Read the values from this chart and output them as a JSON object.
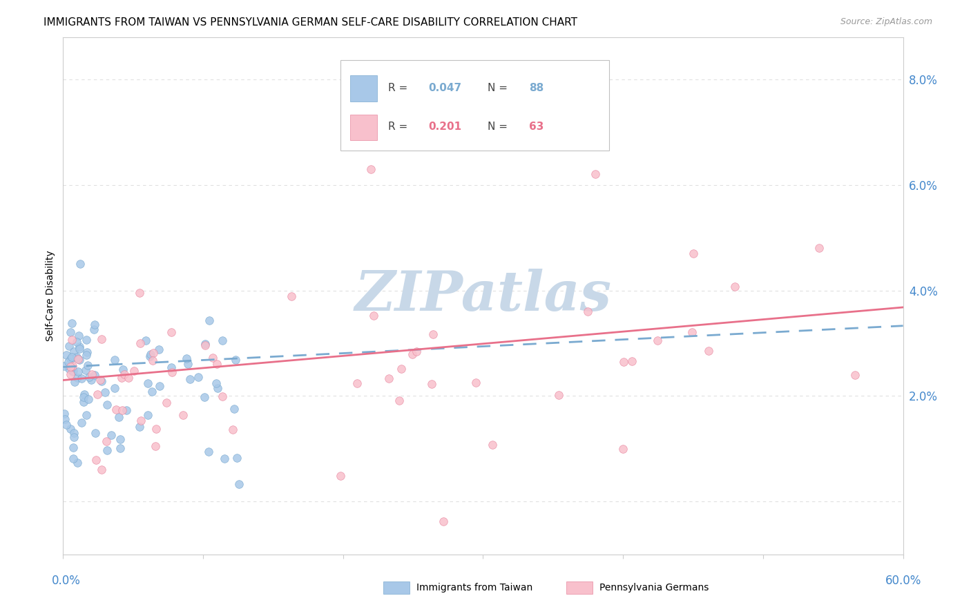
{
  "title": "IMMIGRANTS FROM TAIWAN VS PENNSYLVANIA GERMAN SELF-CARE DISABILITY CORRELATION CHART",
  "source": "Source: ZipAtlas.com",
  "ylabel": "Self-Care Disability",
  "xmin": 0.0,
  "xmax": 0.6,
  "ymin": -0.01,
  "ymax": 0.088,
  "yticks": [
    0.0,
    0.02,
    0.04,
    0.06,
    0.08
  ],
  "ytick_labels": [
    "",
    "2.0%",
    "4.0%",
    "6.0%",
    "8.0%"
  ],
  "series1_label": "Immigrants from Taiwan",
  "series1_R": "0.047",
  "series1_N": "88",
  "series1_color": "#a8c8e8",
  "series1_edge_color": "#7aaad0",
  "series1_line_color": "#7aaad0",
  "series2_label": "Pennsylvania Germans",
  "series2_R": "0.201",
  "series2_N": "63",
  "series2_color": "#f8c0cc",
  "series2_edge_color": "#e888a0",
  "series2_line_color": "#e8708a",
  "background_color": "#ffffff",
  "watermark_color": "#c8d8e8",
  "axis_label_color": "#4488cc",
  "grid_color": "#e0e0e0",
  "title_fontsize": 11,
  "leg_R_label": "R = ",
  "leg_N_label": "N = "
}
